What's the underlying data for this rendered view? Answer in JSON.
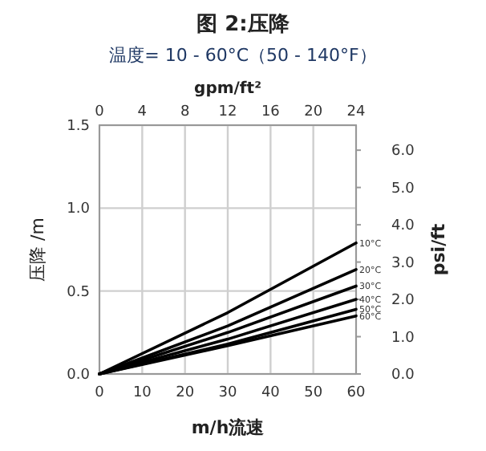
{
  "chart_data": {
    "type": "line",
    "title": "图 2:压降",
    "subtitle": "温度= 10 - 60°C（50 - 140°F）",
    "xlabel": "m/h流速",
    "ylabel": "压降 /m",
    "y2label": "psi/ft",
    "x2label": "gpm/ft²",
    "x": [
      0,
      30,
      60
    ],
    "series": [
      {
        "name": "10°C",
        "color": "#000000",
        "values": [
          0,
          0.37,
          0.79
        ]
      },
      {
        "name": "20°C",
        "color": "#000000",
        "values": [
          0,
          0.29,
          0.63
        ]
      },
      {
        "name": "30°C",
        "color": "#000000",
        "values": [
          0,
          0.25,
          0.53
        ]
      },
      {
        "name": "40°C",
        "color": "#000000",
        "values": [
          0,
          0.21,
          0.45
        ]
      },
      {
        "name": "50°C",
        "color": "#000000",
        "values": [
          0,
          0.18,
          0.39
        ]
      },
      {
        "name": "60°C",
        "color": "#000000",
        "values": [
          0,
          0.17,
          0.35
        ]
      }
    ],
    "xlim": [
      0,
      60
    ],
    "xticks": [
      0,
      10,
      20,
      30,
      40,
      50,
      60
    ],
    "ylim": [
      0,
      1.5
    ],
    "yticks": [
      {
        "value": 0,
        "label": "0.0"
      },
      {
        "value": 0.5,
        "label": "0.5"
      },
      {
        "value": 1,
        "label": "1.0"
      },
      {
        "value": 1.5,
        "label": "1.5"
      }
    ],
    "x2lim": [
      0,
      24
    ],
    "x2ticks": [
      0,
      4,
      8,
      12,
      16,
      20,
      24
    ],
    "y2lim": [
      0,
      6.67
    ],
    "y2ticks": [
      {
        "value": 0,
        "label": "0.0"
      },
      {
        "value": 1,
        "label": "1.0"
      },
      {
        "value": 2,
        "label": "2.0"
      },
      {
        "value": 3,
        "label": "3.0"
      },
      {
        "value": 4,
        "label": "4.0"
      },
      {
        "value": 5,
        "label": "5.0"
      },
      {
        "value": 6,
        "label": "6.0"
      }
    ],
    "grid": true,
    "legend": false,
    "marker": "none",
    "line_style": "solid"
  }
}
